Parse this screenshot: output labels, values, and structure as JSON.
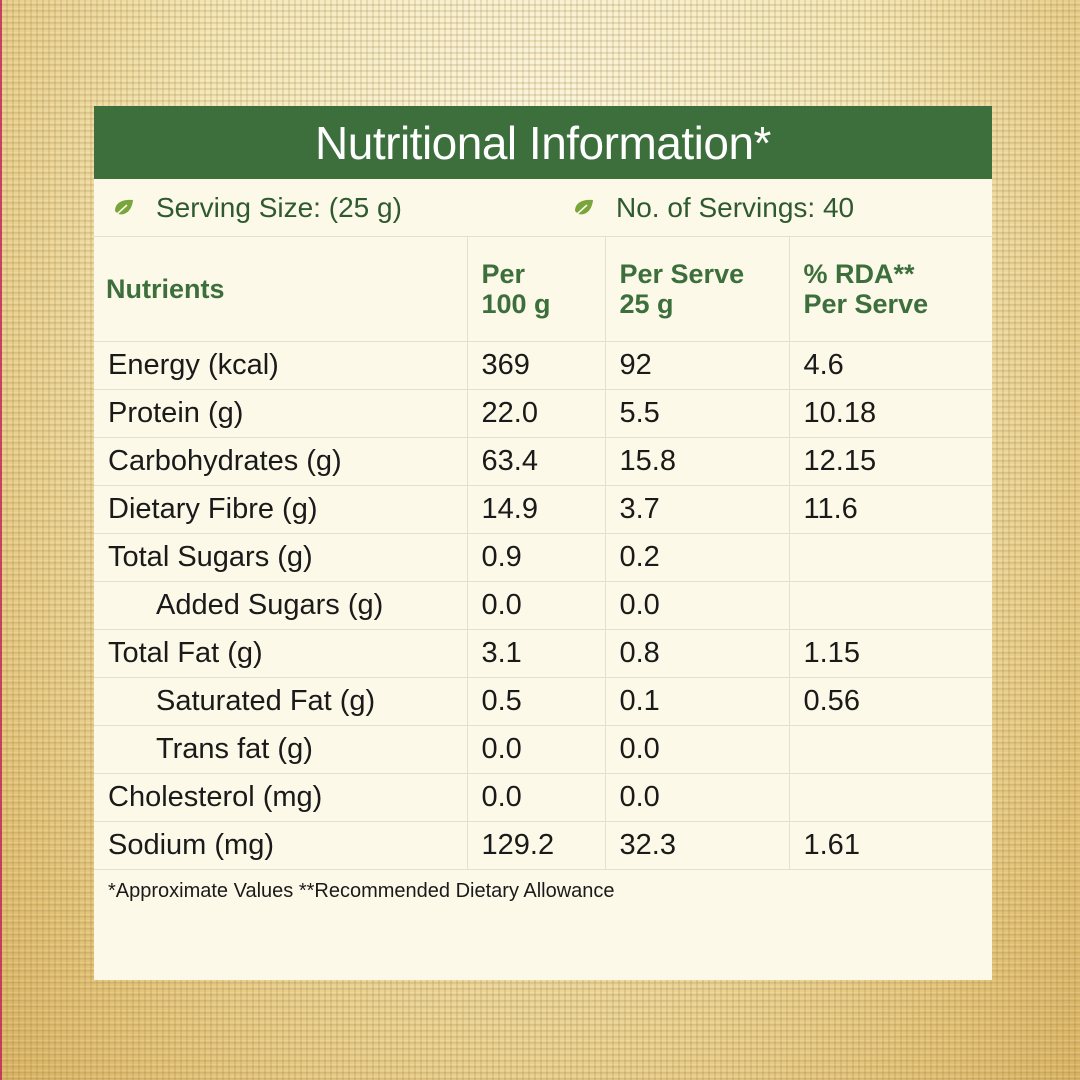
{
  "title": "Nutritional Information*",
  "serving": {
    "size_label": "Serving Size: (25 g)",
    "servings_label": "No. of Servings: 40",
    "icon": "leaf-icon",
    "accent_color": "#3c6f3c"
  },
  "table": {
    "headers": {
      "nutrients": "Nutrients",
      "per100_line1": "Per",
      "per100_line2": "100 g",
      "perserve_line1": "Per Serve",
      "perserve_line2": "25 g",
      "rda_line1": "% RDA**",
      "rda_line2": "Per Serve"
    },
    "rows": [
      {
        "name": "Energy (kcal)",
        "per100": "369",
        "perserve": "92",
        "rda": "4.6"
      },
      {
        "name": "Protein (g)",
        "per100": "22.0",
        "perserve": "5.5",
        "rda": "10.18"
      },
      {
        "name": "Carbohydrates (g)",
        "per100": "63.4",
        "perserve": "15.8",
        "rda": "12.15"
      },
      {
        "name": "Dietary Fibre (g)",
        "per100": "14.9",
        "perserve": "3.7",
        "rda": "11.6"
      },
      {
        "name": "Total Sugars (g)",
        "per100": "0.9",
        "perserve": "0.2",
        "rda": ""
      },
      {
        "name": "Added Sugars (g)",
        "per100": "0.0",
        "perserve": "0.0",
        "rda": ""
      },
      {
        "name": "Total Fat (g)",
        "per100": "3.1",
        "perserve": "0.8",
        "rda": "1.15"
      },
      {
        "name": "Saturated Fat (g)",
        "per100": "0.5",
        "perserve": "0.1",
        "rda": "0.56"
      },
      {
        "name": "Trans fat (g)",
        "per100": "0.0",
        "perserve": "0.0",
        "rda": ""
      },
      {
        "name": "Cholesterol (mg)",
        "per100": "0.0",
        "perserve": "0.0",
        "rda": ""
      },
      {
        "name": "Sodium (mg)",
        "per100": "129.2",
        "perserve": "32.3",
        "rda": "1.61"
      }
    ]
  },
  "footnote": "*Approximate Values  **Recommended Dietary Allowance"
}
